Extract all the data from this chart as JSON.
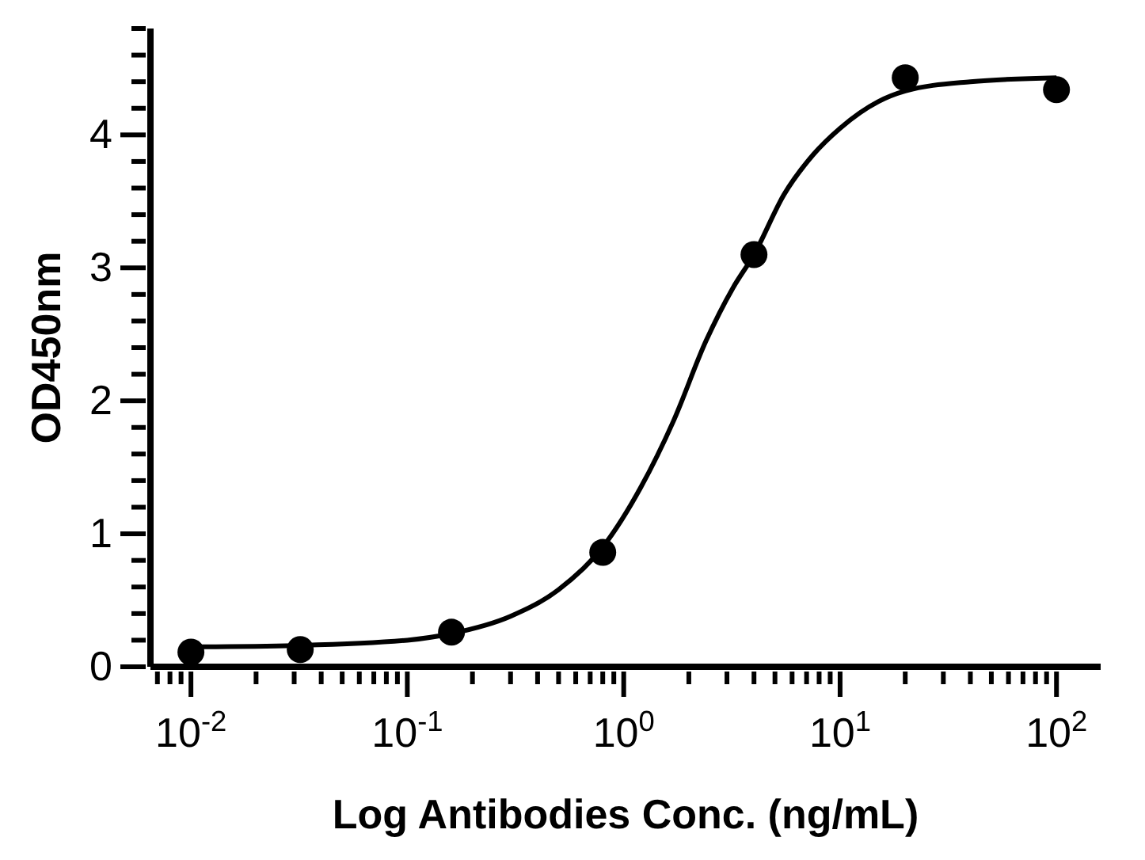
{
  "chart_data": {
    "type": "scatter",
    "xlabel": "Log Antibodies Conc. (ng/mL)",
    "ylabel": "OD450nm",
    "log": "x",
    "grid": false,
    "xlim": [
      0.0065,
      160
    ],
    "ylim": [
      0,
      4.8
    ],
    "xticks": [
      {
        "value": 0.007,
        "label": null
      },
      {
        "value": 0.008,
        "label": null
      },
      {
        "value": 0.009,
        "label": null
      },
      {
        "value": 0.01,
        "label": "10$^{-2}$"
      },
      {
        "value": 0.02,
        "label": null
      },
      {
        "value": 0.03,
        "label": null
      },
      {
        "value": 0.04,
        "label": null
      },
      {
        "value": 0.05,
        "label": null
      },
      {
        "value": 0.06,
        "label": null
      },
      {
        "value": 0.07,
        "label": null
      },
      {
        "value": 0.08,
        "label": null
      },
      {
        "value": 0.09,
        "label": null
      },
      {
        "value": 0.1,
        "label": "10$^{-1}$"
      },
      {
        "value": 0.2,
        "label": null
      },
      {
        "value": 0.3,
        "label": null
      },
      {
        "value": 0.4,
        "label": null
      },
      {
        "value": 0.5,
        "label": null
      },
      {
        "value": 0.6,
        "label": null
      },
      {
        "value": 0.7,
        "label": null
      },
      {
        "value": 0.8,
        "label": null
      },
      {
        "value": 0.9,
        "label": null
      },
      {
        "value": 1,
        "label": "10$^{0}$"
      },
      {
        "value": 2,
        "label": null
      },
      {
        "value": 3,
        "label": null
      },
      {
        "value": 4,
        "label": null
      },
      {
        "value": 5,
        "label": null
      },
      {
        "value": 6,
        "label": null
      },
      {
        "value": 7,
        "label": null
      },
      {
        "value": 8,
        "label": null
      },
      {
        "value": 9,
        "label": null
      },
      {
        "value": 10,
        "label": "10$^{1}$"
      },
      {
        "value": 20,
        "label": null
      },
      {
        "value": 30,
        "label": null
      },
      {
        "value": 40,
        "label": null
      },
      {
        "value": 50,
        "label": null
      },
      {
        "value": 60,
        "label": null
      },
      {
        "value": 70,
        "label": null
      },
      {
        "value": 80,
        "label": null
      },
      {
        "value": 90,
        "label": null
      },
      {
        "value": 100,
        "label": "10$^{2}$"
      }
    ],
    "yticks": [
      0,
      {
        "value": 0.2,
        "label": null
      },
      {
        "value": 0.4,
        "label": null
      },
      {
        "value": 0.6,
        "label": null
      },
      {
        "value": 0.8,
        "label": null
      },
      1,
      {
        "value": 1.2,
        "label": null
      },
      {
        "value": 1.4,
        "label": null
      },
      {
        "value": 1.6,
        "label": null
      },
      {
        "value": 1.8,
        "label": null
      },
      2,
      {
        "value": 2.2,
        "label": null
      },
      {
        "value": 2.4,
        "label": null
      },
      {
        "value": 2.6,
        "label": null
      },
      {
        "value": 2.8,
        "label": null
      },
      3,
      {
        "value": 3.2,
        "label": null
      },
      {
        "value": 3.4,
        "label": null
      },
      {
        "value": 3.6,
        "label": null
      },
      {
        "value": 3.8,
        "label": null
      },
      4,
      {
        "value": 4.2,
        "label": null
      },
      {
        "value": 4.4,
        "label": null
      },
      {
        "value": 4.6,
        "label": null
      },
      {
        "value": 4.8,
        "label": null
      }
    ],
    "series": [
      {
        "marker": "circle",
        "color": "#000000",
        "x": [
          0.01,
          0.032,
          0.16,
          0.8,
          4,
          20,
          100
        ],
        "values": [
          0.11,
          0.13,
          0.26,
          0.86,
          3.1,
          4.43,
          4.34
        ]
      },
      {
        "type": "line",
        "marker": "none",
        "color": "#000000",
        "x": [
          0.01,
          0.03,
          0.1,
          0.16,
          0.3,
          0.5,
          0.8,
          1.2,
          1.7,
          2.4,
          3.2,
          4,
          5.5,
          7.5,
          10,
          15,
          20,
          40,
          100
        ],
        "values": [
          0.15,
          0.16,
          0.2,
          0.25,
          0.38,
          0.58,
          0.9,
          1.35,
          1.85,
          2.45,
          2.85,
          3.1,
          3.55,
          3.85,
          4.05,
          4.25,
          4.33,
          4.4,
          4.43
        ]
      }
    ]
  }
}
